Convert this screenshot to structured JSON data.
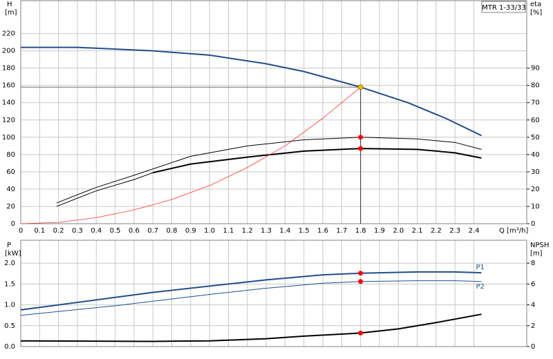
{
  "chart_data": [
    {
      "type": "line",
      "annotation": "MTR 1-33/33",
      "ylabel": "H",
      "yunit": "[m]",
      "y2label": "eta",
      "y2unit": "[%]",
      "xlabel": "Q [m³/h]",
      "xlim": [
        0,
        2.68
      ],
      "ylim": [
        0,
        258
      ],
      "y2lim": [
        0,
        129
      ],
      "grid": true,
      "xtick_labels": true,
      "xticks": [
        0,
        0.1,
        0.2,
        0.3,
        0.4,
        0.5,
        0.6,
        0.7,
        0.8,
        0.9,
        {
          "value": 1,
          "label": "1.0"
        },
        1.1,
        1.2,
        1.3,
        1.4,
        1.5,
        1.6,
        1.7,
        1.8,
        1.9,
        {
          "value": 2,
          "label": "2.0"
        },
        2.1,
        2.2,
        2.3,
        2.4
      ],
      "yticks": [
        0,
        20,
        40,
        60,
        80,
        100,
        120,
        140,
        160,
        180,
        200,
        220
      ],
      "y2ticks": [
        0,
        10,
        20,
        30,
        40,
        50,
        60,
        70,
        80,
        90
      ],
      "series": [
        {
          "color": "#1f4e8c",
          "width": 2,
          "axis": "y",
          "x": [
            0,
            0.3,
            0.7,
            1.0,
            1.3,
            1.5,
            1.8,
            2.05,
            2.25,
            2.44
          ],
          "values": [
            204,
            204,
            200,
            195,
            185,
            176,
            158,
            140,
            122,
            102
          ]
        },
        {
          "color": "#000000",
          "width": 1,
          "axis": "y2",
          "x": [
            0.19,
            0.4,
            0.6,
            0.9,
            1.2,
            1.5,
            1.8,
            2.1,
            2.3,
            2.44
          ],
          "values": [
            12,
            21,
            28,
            39,
            45,
            48.5,
            50,
            49,
            47,
            43
          ]
        },
        {
          "color": "#000000",
          "width": 1,
          "axis": "y2",
          "x": [
            0.19,
            0.4,
            0.6,
            0.7
          ],
          "values": [
            10,
            19,
            25.5,
            29.5
          ]
        },
        {
          "color": "#000000",
          "width": 2,
          "axis": "y2",
          "x": [
            0.7,
            0.9,
            1.2,
            1.5,
            1.8,
            2.1,
            2.3,
            2.44
          ],
          "values": [
            29.5,
            34.5,
            38.5,
            42,
            43.5,
            43,
            41,
            38
          ]
        },
        {
          "color": "#ff3030",
          "width": 0.8,
          "axis": "y",
          "x": [
            0,
            0.2,
            0.4,
            0.6,
            0.8,
            1.0,
            1.2,
            1.4,
            1.6,
            1.8
          ],
          "values": [
            0,
            1.5,
            7,
            16,
            28,
            44,
            65,
            90,
            122,
            158
          ]
        }
      ],
      "points": [
        {
          "x": 1.8,
          "y": 158,
          "axis": "y",
          "color": "#f5b400"
        },
        {
          "x": 1.8,
          "y": 50,
          "axis": "y2",
          "color": "#ff0000"
        },
        {
          "x": 1.8,
          "y": 43.5,
          "axis": "y2",
          "color": "#ff0000"
        }
      ]
    },
    {
      "type": "line",
      "ylabel": "P",
      "yunit": "[kW]",
      "y2label": "NPSH",
      "y2unit": "[m]",
      "xlim": [
        0,
        2.68
      ],
      "ylim": [
        0,
        2.55
      ],
      "y2lim": [
        0,
        10.2
      ],
      "grid": true,
      "xtick_labels": false,
      "xticks": [
        0,
        0.1,
        0.2,
        0.3,
        0.4,
        0.5,
        0.6,
        0.7,
        0.8,
        0.9,
        1,
        1.1,
        1.2,
        1.3,
        1.4,
        1.5,
        1.6,
        1.7,
        1.8,
        1.9,
        2,
        2.1,
        2.2,
        2.3,
        2.4
      ],
      "yticks": [
        {
          "value": 0,
          "label": "0.0"
        },
        0.5,
        {
          "value": 1,
          "label": "1.0"
        },
        1.5,
        {
          "value": 2,
          "label": "2.0"
        }
      ],
      "y2ticks": [
        0,
        2,
        4,
        6,
        8
      ],
      "series": [
        {
          "name": "P1",
          "color": "#1f4e8c",
          "width": 2,
          "axis": "y",
          "x": [
            0,
            0.7,
            1.0,
            1.3,
            1.6,
            1.8,
            2.1,
            2.3,
            2.44
          ],
          "values": [
            0.88,
            1.3,
            1.45,
            1.6,
            1.72,
            1.76,
            1.79,
            1.79,
            1.77
          ]
        },
        {
          "name": "P2",
          "color": "#1f4e8c",
          "width": 1,
          "axis": "y",
          "x": [
            0,
            0.5,
            1.0,
            1.3,
            1.6,
            1.8,
            2.1,
            2.3,
            2.44
          ],
          "values": [
            0.75,
            0.98,
            1.25,
            1.4,
            1.52,
            1.56,
            1.58,
            1.58,
            1.56
          ]
        },
        {
          "color": "#000000",
          "width": 2,
          "axis": "y2",
          "x": [
            0,
            0.7,
            1.0,
            1.3,
            1.5,
            1.8,
            2.0,
            2.2,
            2.44
          ],
          "values": [
            0.55,
            0.5,
            0.55,
            0.75,
            1.0,
            1.3,
            1.7,
            2.3,
            3.1
          ]
        }
      ],
      "points": [
        {
          "x": 1.8,
          "y": 1.76,
          "axis": "y",
          "color": "#ff0000"
        },
        {
          "x": 1.8,
          "y": 1.56,
          "axis": "y",
          "color": "#ff0000"
        },
        {
          "x": 1.8,
          "y": 1.3,
          "axis": "y2",
          "color": "#ff0000"
        }
      ]
    }
  ]
}
